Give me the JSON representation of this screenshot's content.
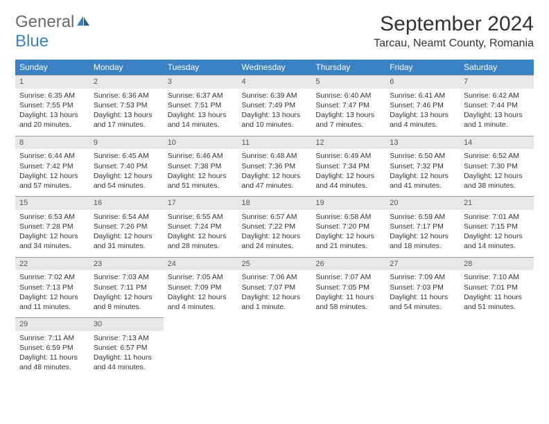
{
  "logo": {
    "general": "General",
    "blue": "Blue"
  },
  "title": "September 2024",
  "location": "Tarcau, Neamt County, Romania",
  "colors": {
    "header_bg": "#3b82c4",
    "header_text": "#ffffff",
    "daynum_bg": "#e8e8e8",
    "daynum_border": "#999999",
    "text": "#333333",
    "logo_gray": "#6b6b6b",
    "logo_blue": "#3b82c4"
  },
  "weekdays": [
    "Sunday",
    "Monday",
    "Tuesday",
    "Wednesday",
    "Thursday",
    "Friday",
    "Saturday"
  ],
  "days": [
    {
      "n": "1",
      "sunrise": "6:35 AM",
      "sunset": "7:55 PM",
      "daylight": "13 hours and 20 minutes."
    },
    {
      "n": "2",
      "sunrise": "6:36 AM",
      "sunset": "7:53 PM",
      "daylight": "13 hours and 17 minutes."
    },
    {
      "n": "3",
      "sunrise": "6:37 AM",
      "sunset": "7:51 PM",
      "daylight": "13 hours and 14 minutes."
    },
    {
      "n": "4",
      "sunrise": "6:39 AM",
      "sunset": "7:49 PM",
      "daylight": "13 hours and 10 minutes."
    },
    {
      "n": "5",
      "sunrise": "6:40 AM",
      "sunset": "7:47 PM",
      "daylight": "13 hours and 7 minutes."
    },
    {
      "n": "6",
      "sunrise": "6:41 AM",
      "sunset": "7:46 PM",
      "daylight": "13 hours and 4 minutes."
    },
    {
      "n": "7",
      "sunrise": "6:42 AM",
      "sunset": "7:44 PM",
      "daylight": "13 hours and 1 minute."
    },
    {
      "n": "8",
      "sunrise": "6:44 AM",
      "sunset": "7:42 PM",
      "daylight": "12 hours and 57 minutes."
    },
    {
      "n": "9",
      "sunrise": "6:45 AM",
      "sunset": "7:40 PM",
      "daylight": "12 hours and 54 minutes."
    },
    {
      "n": "10",
      "sunrise": "6:46 AM",
      "sunset": "7:38 PM",
      "daylight": "12 hours and 51 minutes."
    },
    {
      "n": "11",
      "sunrise": "6:48 AM",
      "sunset": "7:36 PM",
      "daylight": "12 hours and 47 minutes."
    },
    {
      "n": "12",
      "sunrise": "6:49 AM",
      "sunset": "7:34 PM",
      "daylight": "12 hours and 44 minutes."
    },
    {
      "n": "13",
      "sunrise": "6:50 AM",
      "sunset": "7:32 PM",
      "daylight": "12 hours and 41 minutes."
    },
    {
      "n": "14",
      "sunrise": "6:52 AM",
      "sunset": "7:30 PM",
      "daylight": "12 hours and 38 minutes."
    },
    {
      "n": "15",
      "sunrise": "6:53 AM",
      "sunset": "7:28 PM",
      "daylight": "12 hours and 34 minutes."
    },
    {
      "n": "16",
      "sunrise": "6:54 AM",
      "sunset": "7:26 PM",
      "daylight": "12 hours and 31 minutes."
    },
    {
      "n": "17",
      "sunrise": "6:55 AM",
      "sunset": "7:24 PM",
      "daylight": "12 hours and 28 minutes."
    },
    {
      "n": "18",
      "sunrise": "6:57 AM",
      "sunset": "7:22 PM",
      "daylight": "12 hours and 24 minutes."
    },
    {
      "n": "19",
      "sunrise": "6:58 AM",
      "sunset": "7:20 PM",
      "daylight": "12 hours and 21 minutes."
    },
    {
      "n": "20",
      "sunrise": "6:59 AM",
      "sunset": "7:17 PM",
      "daylight": "12 hours and 18 minutes."
    },
    {
      "n": "21",
      "sunrise": "7:01 AM",
      "sunset": "7:15 PM",
      "daylight": "12 hours and 14 minutes."
    },
    {
      "n": "22",
      "sunrise": "7:02 AM",
      "sunset": "7:13 PM",
      "daylight": "12 hours and 11 minutes."
    },
    {
      "n": "23",
      "sunrise": "7:03 AM",
      "sunset": "7:11 PM",
      "daylight": "12 hours and 8 minutes."
    },
    {
      "n": "24",
      "sunrise": "7:05 AM",
      "sunset": "7:09 PM",
      "daylight": "12 hours and 4 minutes."
    },
    {
      "n": "25",
      "sunrise": "7:06 AM",
      "sunset": "7:07 PM",
      "daylight": "12 hours and 1 minute."
    },
    {
      "n": "26",
      "sunrise": "7:07 AM",
      "sunset": "7:05 PM",
      "daylight": "11 hours and 58 minutes."
    },
    {
      "n": "27",
      "sunrise": "7:09 AM",
      "sunset": "7:03 PM",
      "daylight": "11 hours and 54 minutes."
    },
    {
      "n": "28",
      "sunrise": "7:10 AM",
      "sunset": "7:01 PM",
      "daylight": "11 hours and 51 minutes."
    },
    {
      "n": "29",
      "sunrise": "7:11 AM",
      "sunset": "6:59 PM",
      "daylight": "11 hours and 48 minutes."
    },
    {
      "n": "30",
      "sunrise": "7:13 AM",
      "sunset": "6:57 PM",
      "daylight": "11 hours and 44 minutes."
    }
  ],
  "labels": {
    "sunrise": "Sunrise:",
    "sunset": "Sunset:",
    "daylight": "Daylight:"
  }
}
